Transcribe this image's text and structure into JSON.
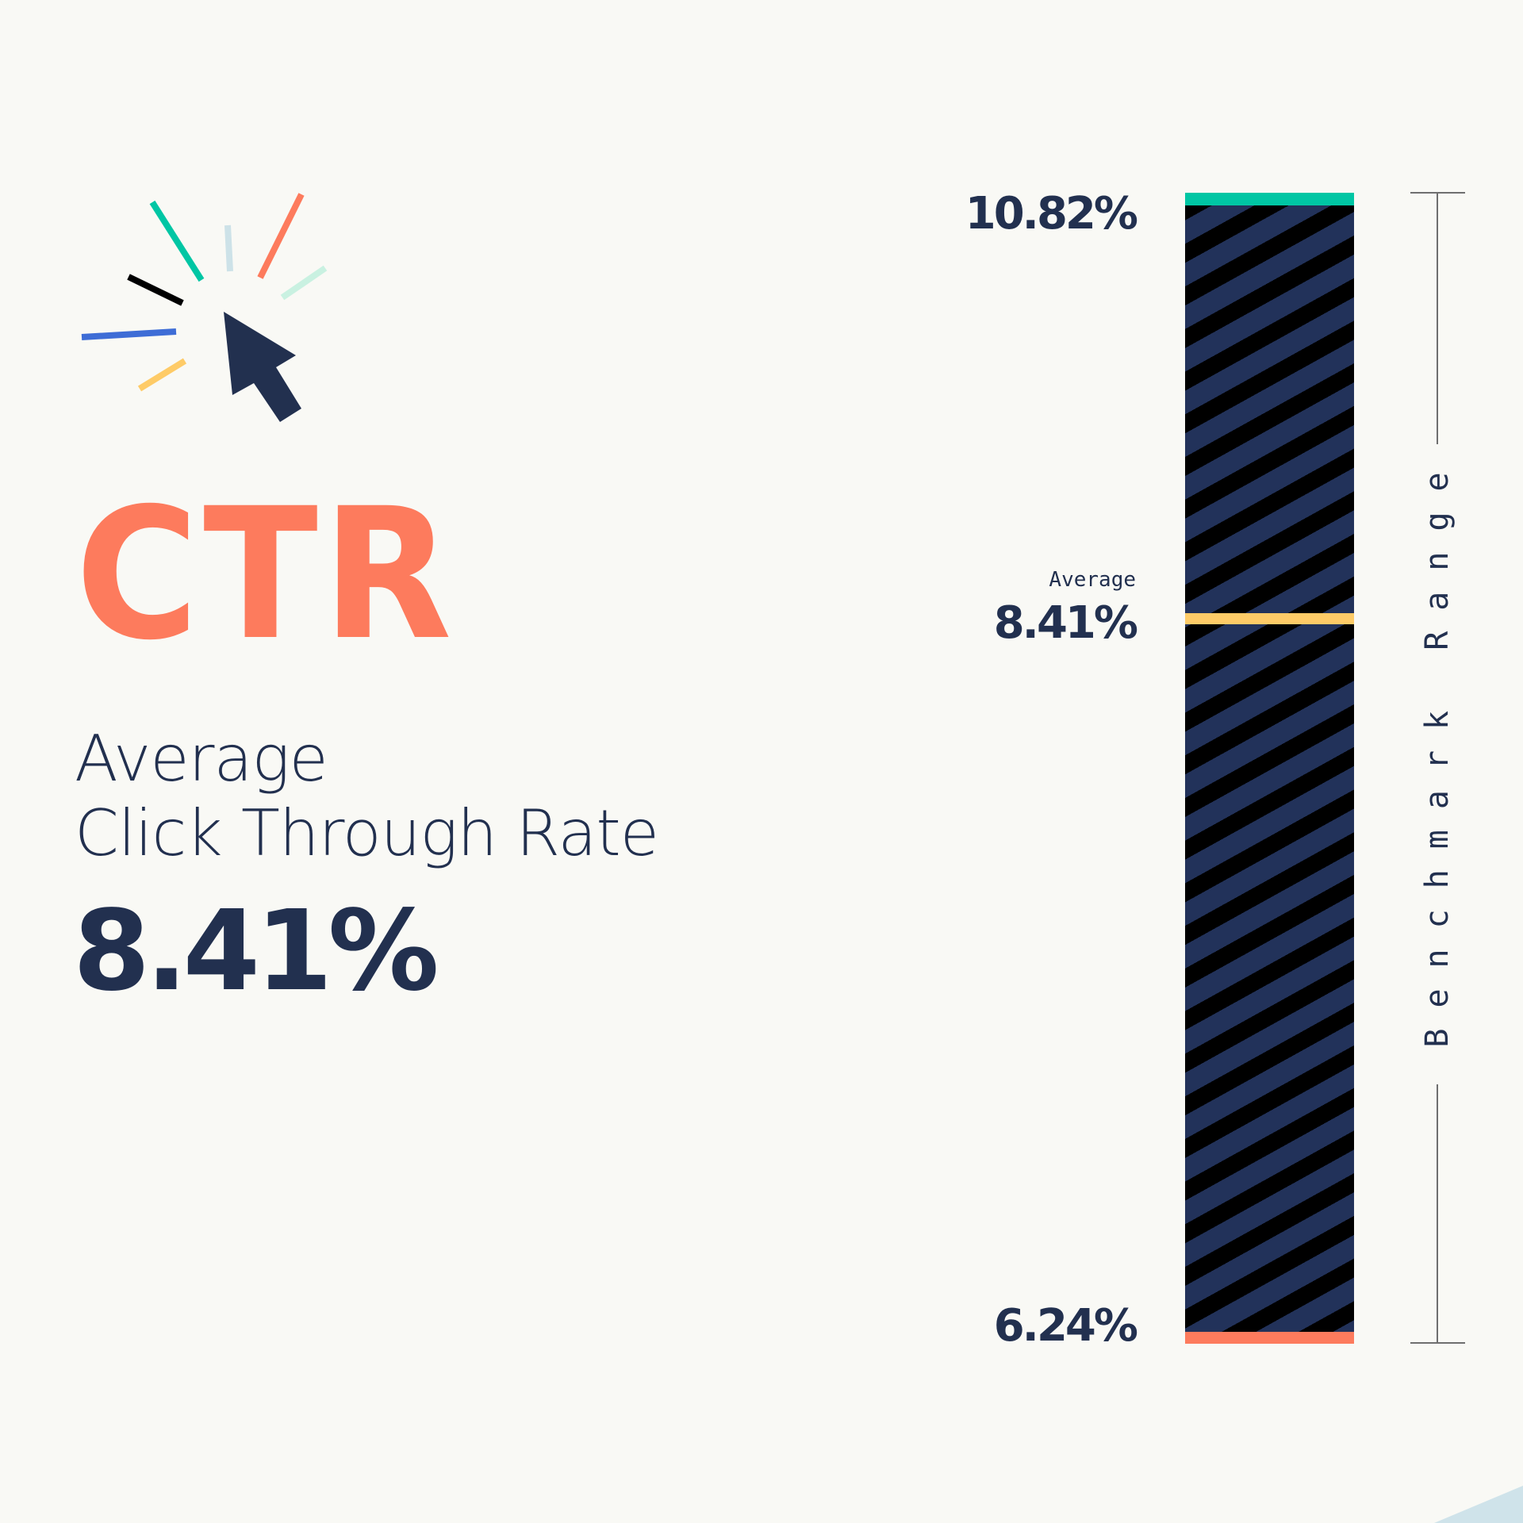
{
  "title": {
    "abbr": "CTR",
    "subtitle_line1": "Average",
    "subtitle_line2": "Click Through Rate",
    "value": "8.41%"
  },
  "icon": "cursor-click-icon",
  "benchmark": {
    "max_label": "10.82%",
    "avg_caption": "Average",
    "avg_label": "8.41%",
    "min_label": "6.24%",
    "range_label": "Benchmark Range"
  },
  "colors": {
    "background": "#f9f9f5",
    "accent_coral": "#fd7b5d",
    "navy": "#22304f",
    "max_teal": "#00c6a4",
    "avg_yellow": "#fecb67",
    "min_coral": "#fd7b5d",
    "stripe_navy": "#22325a",
    "stripe_black": "#000000"
  },
  "chart_data": {
    "type": "bar",
    "title": "CTR — Average Click Through Rate",
    "orientation": "vertical range bar",
    "categories": [
      "Benchmark Range"
    ],
    "series": [
      {
        "name": "Max",
        "values": [
          10.82
        ]
      },
      {
        "name": "Average",
        "values": [
          8.41
        ]
      },
      {
        "name": "Min",
        "values": [
          6.24
        ]
      }
    ],
    "unit": "%",
    "ylabel": "Benchmark Range",
    "xlabel": "",
    "ylim": [
      6.24,
      10.82
    ],
    "legend": "none",
    "grid": false,
    "annotations": [
      "10.82%",
      "Average 8.41%",
      "6.24%"
    ]
  }
}
